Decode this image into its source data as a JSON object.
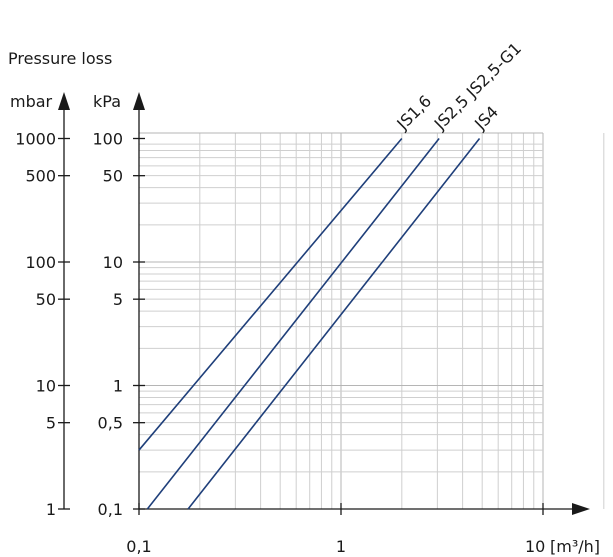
{
  "chart_data": {
    "type": "line",
    "title": "Pressure loss",
    "xlabel": "[m³/h]",
    "x_scale": "log",
    "y_scale": "log",
    "xlim": [
      0.1,
      20
    ],
    "ylim_kpa": [
      0.1,
      100
    ],
    "x_ticks": [
      {
        "value": 0.1,
        "label": "0,1"
      },
      {
        "value": 1,
        "label": "1"
      },
      {
        "value": 10,
        "label": "10"
      }
    ],
    "y_axes": [
      {
        "unit": "mbar",
        "ticks": [
          {
            "value": 1,
            "label": "1"
          },
          {
            "value": 5,
            "label": "5"
          },
          {
            "value": 10,
            "label": "10"
          },
          {
            "value": 50,
            "label": "50"
          },
          {
            "value": 100,
            "label": "100"
          },
          {
            "value": 500,
            "label": "500"
          },
          {
            "value": 1000,
            "label": "1000"
          }
        ]
      },
      {
        "unit": "kPa",
        "ticks": [
          {
            "value": 0.1,
            "label": "0,1"
          },
          {
            "value": 0.5,
            "label": "0,5"
          },
          {
            "value": 1,
            "label": "1"
          },
          {
            "value": 5,
            "label": "5"
          },
          {
            "value": 10,
            "label": "10"
          },
          {
            "value": 50,
            "label": "50"
          },
          {
            "value": 100,
            "label": "100"
          }
        ]
      }
    ],
    "grid": true,
    "series": [
      {
        "name": "JS1,6",
        "x": [
          0.1,
          2.0
        ],
        "y": [
          0.3,
          100
        ]
      },
      {
        "name": "JS2,5 JS2,5-G1",
        "x": [
          0.11,
          3.06
        ],
        "y": [
          0.1,
          100
        ]
      },
      {
        "name": "JS4",
        "x": [
          0.175,
          4.85
        ],
        "y": [
          0.1,
          100
        ]
      }
    ],
    "colors": {
      "series": "#1f3f7a",
      "axis": "#1a1a1a",
      "grid": "#c8c8c8"
    }
  }
}
